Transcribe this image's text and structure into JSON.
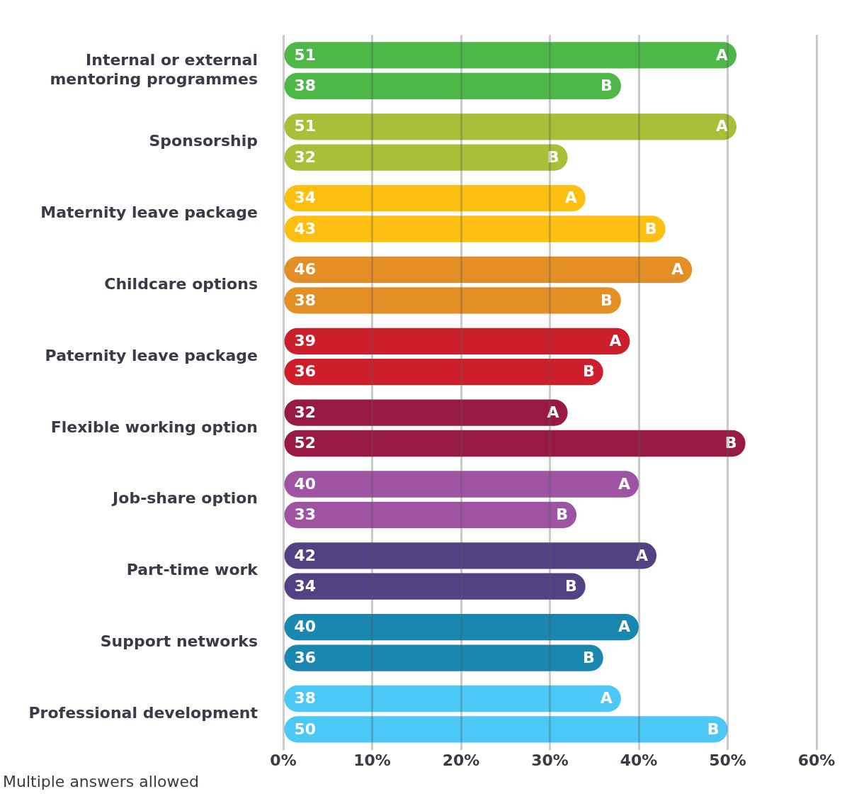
{
  "chart_data": {
    "type": "bar",
    "orientation": "horizontal",
    "categories": [
      "Internal or external mentoring programmes",
      "Sponsorship",
      "Maternity leave package",
      "Childcare options",
      "Paternity leave package",
      "Flexible working option",
      "Job-share option",
      "Part-time work",
      "Support networks",
      "Professional development"
    ],
    "series": [
      {
        "name": "A",
        "colors": [
          "#4db848",
          "#a8bf38",
          "#fdc010",
          "#e38f25",
          "#cc1f2b",
          "#981a42",
          "#9e54a3",
          "#524283",
          "#1a87b0",
          "#4bc8f5"
        ],
        "values": [
          51,
          51,
          34,
          46,
          39,
          32,
          40,
          42,
          40,
          38
        ]
      },
      {
        "name": "B",
        "colors": [
          "#4db848",
          "#a8bf38",
          "#fdc010",
          "#e38f25",
          "#cc1f2b",
          "#981a42",
          "#9e54a3",
          "#524283",
          "#1a87b0",
          "#4bc8f5"
        ],
        "values": [
          38,
          32,
          43,
          38,
          36,
          52,
          33,
          34,
          36,
          50
        ]
      }
    ],
    "xlim": [
      0,
      60
    ],
    "xticks": [
      {
        "value": 0,
        "label": "0%"
      },
      {
        "value": 10,
        "label": "10%"
      },
      {
        "value": 20,
        "label": "20%"
      },
      {
        "value": 30,
        "label": "30%"
      },
      {
        "value": 40,
        "label": "40%"
      },
      {
        "value": 50,
        "label": "50%"
      },
      {
        "value": 60,
        "label": "60%"
      }
    ],
    "grid": "x",
    "legend": false,
    "data_labels": true,
    "annotations": [
      "Multiple answers allowed"
    ]
  }
}
